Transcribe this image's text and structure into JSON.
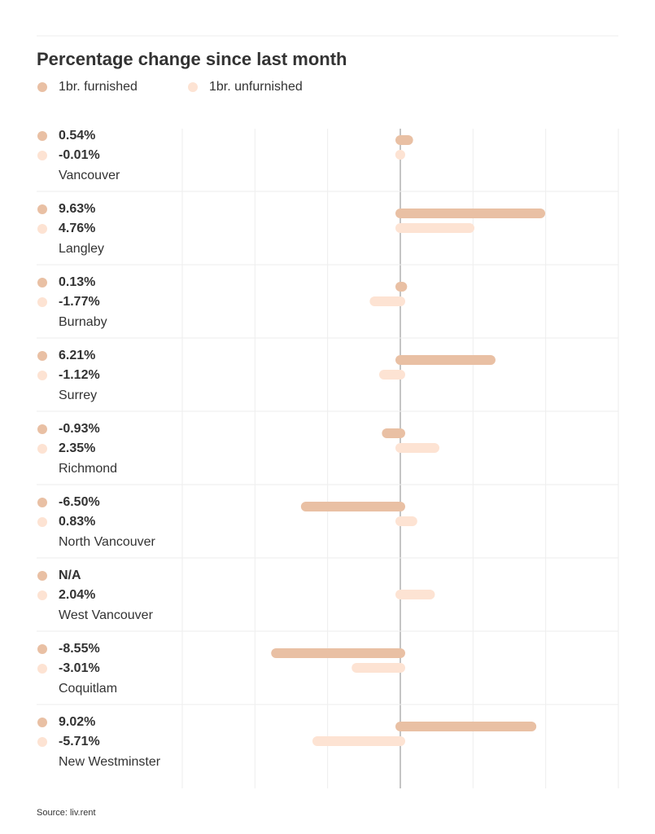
{
  "chart_data": {
    "type": "bar",
    "orientation": "horizontal",
    "title": "Percentage change since last month",
    "categories": [
      "Vancouver",
      "Langley",
      "Burnaby",
      "Surrey",
      "Richmond",
      "North Vancouver",
      "West Vancouver",
      "Coquitlam",
      "New Westminster"
    ],
    "series": [
      {
        "name": "1br. furnished",
        "color": "#e9c0a4",
        "values": [
          0.54,
          9.63,
          0.13,
          6.21,
          -0.93,
          -6.5,
          null,
          -8.55,
          9.02
        ],
        "value_labels": [
          "0.54%",
          "9.63%",
          "0.13%",
          "6.21%",
          "-0.93%",
          "-6.50%",
          "N/A",
          "-8.55%",
          "9.02%"
        ]
      },
      {
        "name": "1br. unfurnished",
        "color": "#fde3d3",
        "values": [
          -0.01,
          4.76,
          -1.77,
          -1.12,
          2.35,
          0.83,
          2.04,
          -3.01,
          -5.71
        ],
        "value_labels": [
          "-0.01%",
          "4.76%",
          "-1.77%",
          "-1.12%",
          "2.35%",
          "0.83%",
          "2.04%",
          "-3.01%",
          "-5.71%"
        ]
      }
    ],
    "xlim": [
      -15,
      15
    ],
    "xticks": [
      -15,
      -10,
      -5,
      0,
      5,
      10,
      15
    ],
    "grid": true,
    "source": "Source: liv.rent"
  }
}
